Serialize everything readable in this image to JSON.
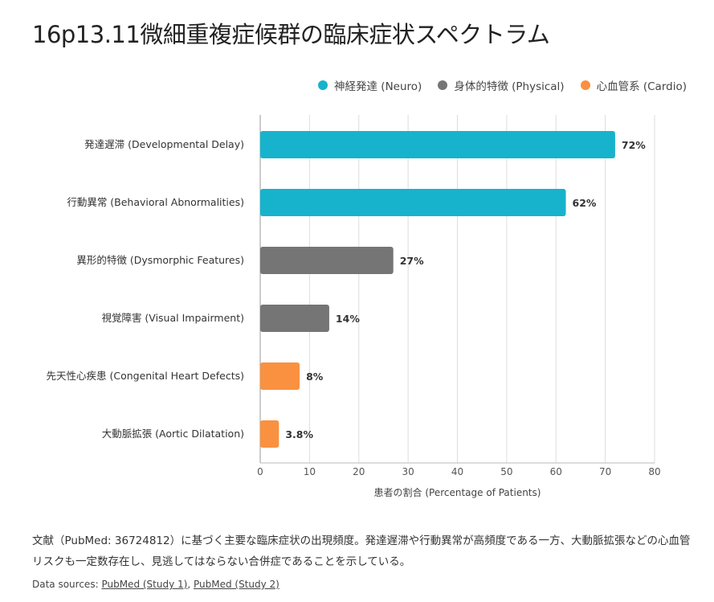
{
  "chart_data": {
    "type": "bar",
    "orientation": "horizontal",
    "title": "16p13.11微細重複症候群の臨床症状スペクトラム",
    "xlabel": "患者の割合 (Percentage of Patients)",
    "ylabel": "",
    "xlim": [
      0,
      80
    ],
    "xticks": [
      0,
      10,
      20,
      30,
      40,
      50,
      60,
      70,
      80
    ],
    "grid": true,
    "legend_position": "top-right",
    "legend": [
      {
        "name": "神経発達 (Neuro)",
        "color": "#17b3cc"
      },
      {
        "name": "身体的特徴 (Physical)",
        "color": "#757575"
      },
      {
        "name": "心血管系 (Cardio)",
        "color": "#f99140"
      }
    ],
    "categories": [
      "発達遅滞 (Developmental Delay)",
      "行動異常 (Behavioral Abnormalities)",
      "異形的特徴 (Dysmorphic Features)",
      "視覚障害 (Visual Impairment)",
      "先天性心疾患 (Congenital Heart Defects)",
      "大動脈拡張 (Aortic Dilatation)"
    ],
    "values": [
      72,
      62,
      27,
      14,
      8,
      3.8
    ],
    "data_labels": [
      "72%",
      "62%",
      "27%",
      "14%",
      "8%",
      "3.8%"
    ],
    "groups": [
      0,
      0,
      1,
      1,
      2,
      2
    ]
  },
  "description": "文献（PubMed: 36724812）に基づく主要な臨床症状の出現頻度。発達遅滞や行動異常が高頻度である一方、大動脈拡張などの心血管リスクも一定数存在し、見逃してはならない合併症であることを示している。",
  "sources": {
    "label": "Data sources:",
    "links": [
      "PubMed (Study 1)",
      "PubMed (Study 2)"
    ]
  }
}
